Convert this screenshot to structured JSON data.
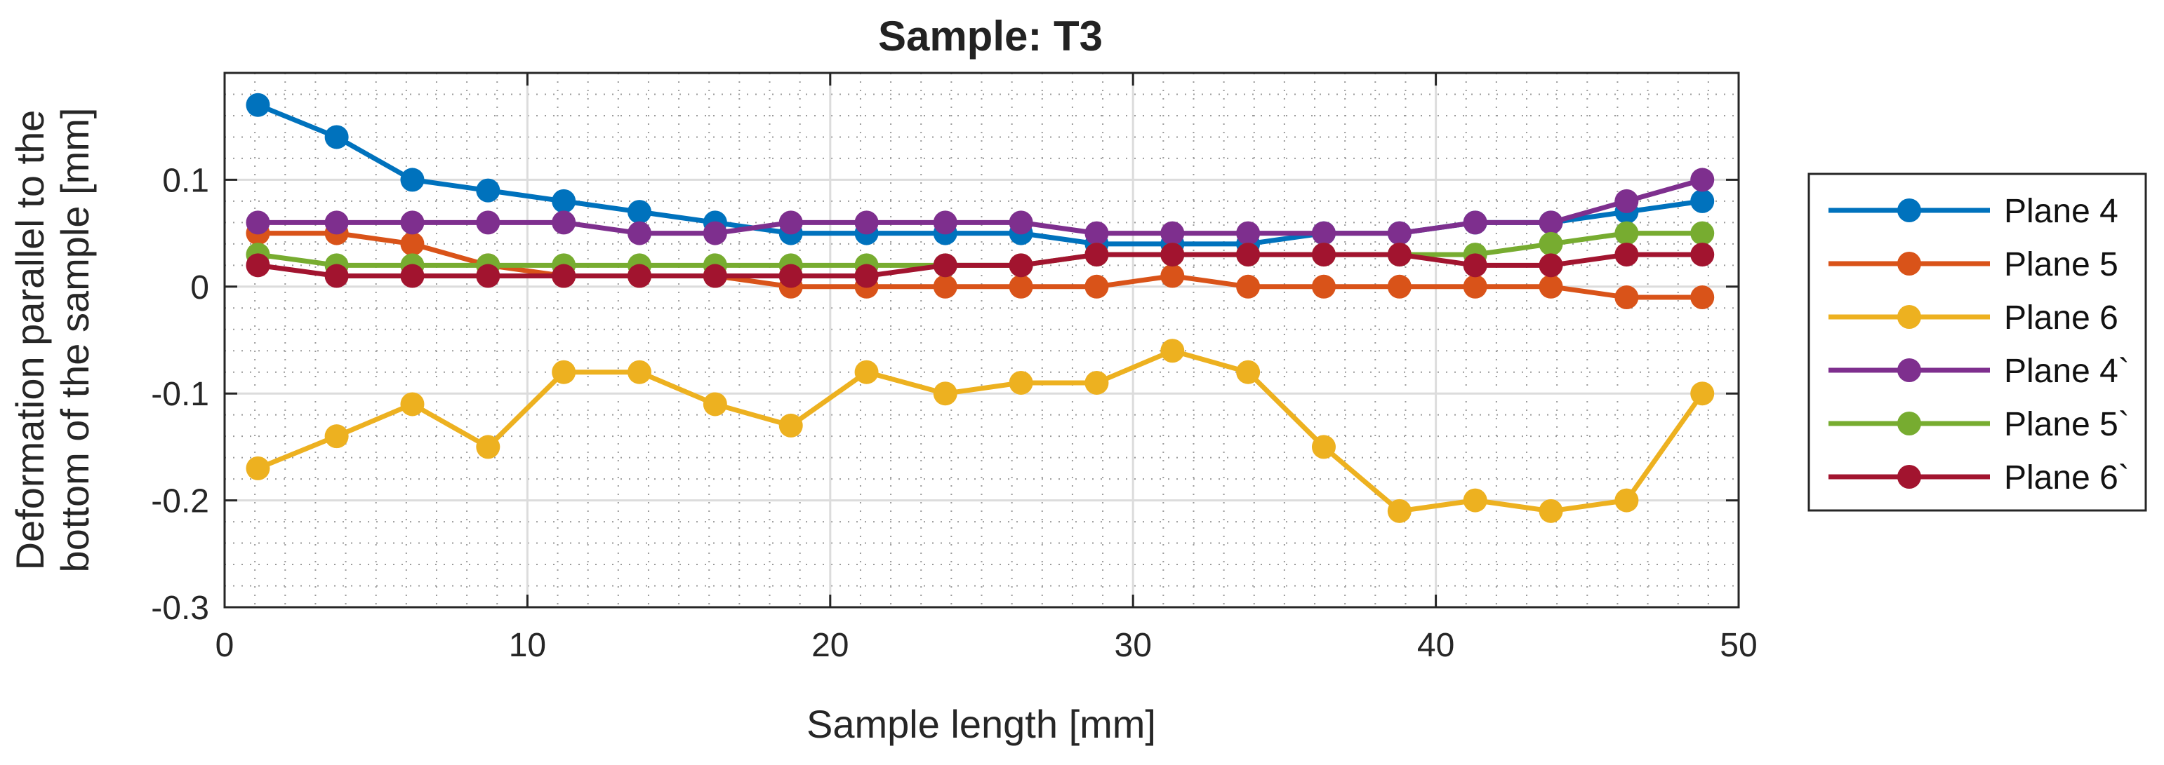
{
  "chart_data": {
    "type": "line",
    "title": "Sample: T3",
    "xlabel": "Sample length [mm]",
    "ylabel": [
      "Deformation parallel to the",
      "bottom of the sample [mm]"
    ],
    "xlim": [
      0,
      50
    ],
    "ylim": [
      -0.3,
      0.2
    ],
    "xticks": [
      0,
      10,
      20,
      30,
      40,
      50
    ],
    "yticks": [
      -0.3,
      -0.2,
      -0.1,
      0,
      0.1
    ],
    "ytick_labels": [
      "-0.3",
      "-0.2",
      "-0.1",
      "0",
      "0.1"
    ],
    "grid": true,
    "minor_grid": true,
    "legend_position": "outside-right",
    "x": [
      1.1,
      3.7,
      6.2,
      8.7,
      11.2,
      13.7,
      16.2,
      18.7,
      21.2,
      23.8,
      26.3,
      28.8,
      31.3,
      33.8,
      36.3,
      38.8,
      41.3,
      43.8,
      46.3,
      48.8
    ],
    "series": [
      {
        "name": "Plane 4",
        "color": "#0072BD",
        "values": [
          0.17,
          0.14,
          0.1,
          0.09,
          0.08,
          0.07,
          0.06,
          0.05,
          0.05,
          0.05,
          0.05,
          0.04,
          0.04,
          0.04,
          0.05,
          0.05,
          0.06,
          0.06,
          0.07,
          0.08
        ]
      },
      {
        "name": "Plane 5",
        "color": "#D95319",
        "values": [
          0.05,
          0.05,
          0.04,
          0.02,
          0.01,
          0.01,
          0.01,
          0.0,
          0.0,
          0.0,
          0.0,
          0.0,
          0.01,
          0.0,
          0.0,
          0.0,
          0.0,
          0.0,
          -0.01,
          -0.01
        ]
      },
      {
        "name": "Plane 6",
        "color": "#EDB120",
        "values": [
          -0.17,
          -0.14,
          -0.11,
          -0.15,
          -0.08,
          -0.08,
          -0.11,
          -0.13,
          -0.08,
          -0.1,
          -0.09,
          -0.09,
          -0.06,
          -0.08,
          -0.15,
          -0.21,
          -0.2,
          -0.21,
          -0.2,
          -0.1
        ]
      },
      {
        "name": "Plane 4`",
        "color": "#7E2F8E",
        "values": [
          0.06,
          0.06,
          0.06,
          0.06,
          0.06,
          0.05,
          0.05,
          0.06,
          0.06,
          0.06,
          0.06,
          0.05,
          0.05,
          0.05,
          0.05,
          0.05,
          0.06,
          0.06,
          0.08,
          0.1
        ]
      },
      {
        "name": "Plane 5`",
        "color": "#77AC30",
        "values": [
          0.03,
          0.02,
          0.02,
          0.02,
          0.02,
          0.02,
          0.02,
          0.02,
          0.02,
          0.02,
          0.02,
          0.03,
          0.03,
          0.03,
          0.03,
          0.03,
          0.03,
          0.04,
          0.05,
          0.05
        ]
      },
      {
        "name": "Plane 6`",
        "color": "#A2142F",
        "values": [
          0.02,
          0.01,
          0.01,
          0.01,
          0.01,
          0.01,
          0.01,
          0.01,
          0.01,
          0.02,
          0.02,
          0.03,
          0.03,
          0.03,
          0.03,
          0.03,
          0.02,
          0.02,
          0.03,
          0.03
        ]
      }
    ]
  }
}
